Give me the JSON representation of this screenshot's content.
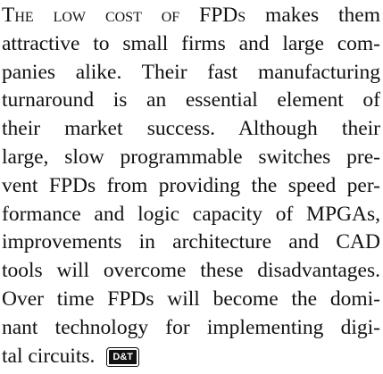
{
  "paragraph": {
    "lead": "The low cost of FPDs",
    "lines": [
      " makes them",
      "attractive to small firms and large com-",
      "panies alike. Their fast manufacturing",
      "turnaround is an essential element of",
      "their market success. Although their",
      "large, slow programmable switches pre-",
      "vent FPDs from providing the speed per-",
      "formance and logic capacity of MPGAs,",
      "improvements in architecture and CAD",
      "tools will overcome these disadvantages.",
      "Over time FPDs will become the domi-",
      "nant technology for implementing digi-",
      "tal circuits."
    ],
    "logo": "D&T"
  }
}
